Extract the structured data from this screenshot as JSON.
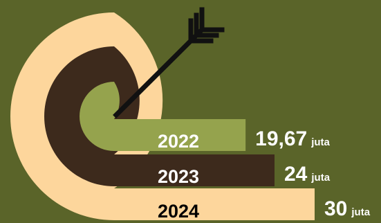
{
  "colors": {
    "background": "#5a6429",
    "band_2024": "#fdd69c",
    "band_2023": "#3d2a1c",
    "band_2022": "#95a34d",
    "arrow": "#111111"
  },
  "chart_data": {
    "type": "bar",
    "categories": [
      "2022",
      "2023",
      "2024"
    ],
    "values": [
      19.67,
      24,
      30
    ],
    "value_labels": [
      "19,67",
      "24",
      "30"
    ],
    "unit": "juta",
    "arrow_icon": "target-arrow-icon"
  }
}
